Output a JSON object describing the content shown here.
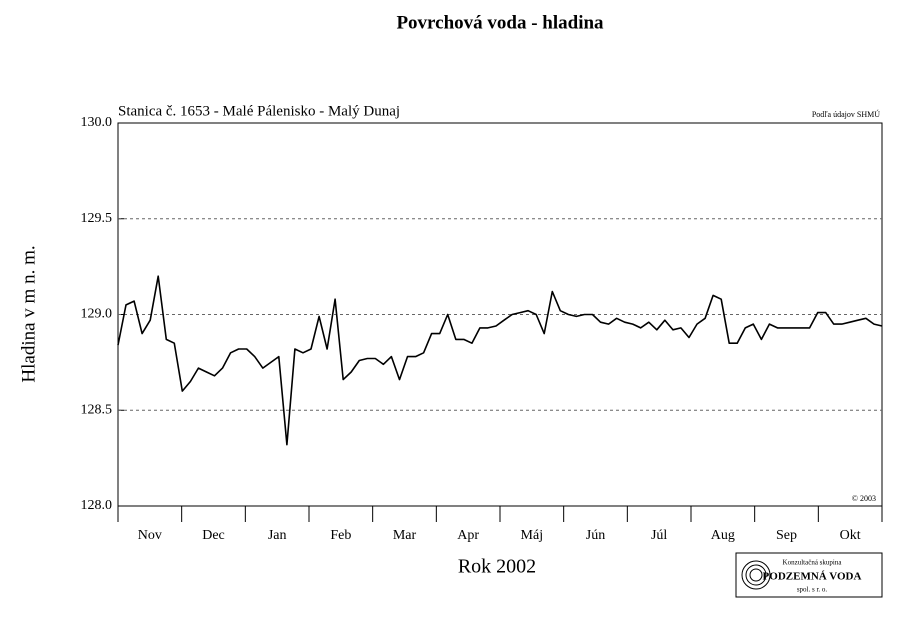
{
  "chart_data": {
    "type": "line",
    "title": "Povrchová voda - hladina",
    "subtitle": "Stanica č. 1653 - Malé Pálenisko - Malý Dunaj",
    "source_note": "Podľa údajov SHMÚ",
    "copyright": "© 2003",
    "y_label": "Hladina v m n. m.",
    "x_label": "Rok 2002",
    "month_labels": [
      "Nov",
      "Dec",
      "Jan",
      "Feb",
      "Mar",
      "Apr",
      "Máj",
      "Jún",
      "Júl",
      "Aug",
      "Sep",
      "Okt"
    ],
    "ylim": [
      128.0,
      130.0
    ],
    "yticks": [
      {
        "value": 128.0,
        "label": "128.0"
      },
      128.5,
      {
        "value": 129.0,
        "label": "129.0"
      },
      129.5,
      {
        "value": 130.0,
        "label": "130.0"
      }
    ],
    "grid": true,
    "series": [
      {
        "color": "#000000",
        "values": [
          128.84,
          129.05,
          129.07,
          128.9,
          128.97,
          129.2,
          128.87,
          128.85,
          128.6,
          128.65,
          128.72,
          128.7,
          128.68,
          128.72,
          128.8,
          128.82,
          128.82,
          128.78,
          128.72,
          128.75,
          128.78,
          128.32,
          128.82,
          128.8,
          128.82,
          128.99,
          128.82,
          129.08,
          128.66,
          128.7,
          128.76,
          128.77,
          128.77,
          128.74,
          128.78,
          128.66,
          128.78,
          128.78,
          128.8,
          128.9,
          128.9,
          129.0,
          128.87,
          128.87,
          128.85,
          128.93,
          128.93,
          128.94,
          128.97,
          129.0,
          129.01,
          129.02,
          129.0,
          128.9,
          129.12,
          129.02,
          129.0,
          128.99,
          129.0,
          129.0,
          128.96,
          128.95,
          128.98,
          128.96,
          128.95,
          128.93,
          128.96,
          128.92,
          128.97,
          128.92,
          128.93,
          128.88,
          128.95,
          128.98,
          129.1,
          129.08,
          128.85,
          128.85,
          128.93,
          128.95,
          128.87,
          128.95,
          128.93,
          128.93,
          128.93,
          128.93,
          128.93,
          129.01,
          129.01,
          128.95,
          128.95,
          128.96,
          128.97,
          128.98,
          128.95,
          128.94
        ]
      }
    ]
  },
  "logo": {
    "line1": "Konzultačná skupina",
    "line2": "PODZEMNÁ VODA",
    "line3": "spol. s r. o."
  }
}
